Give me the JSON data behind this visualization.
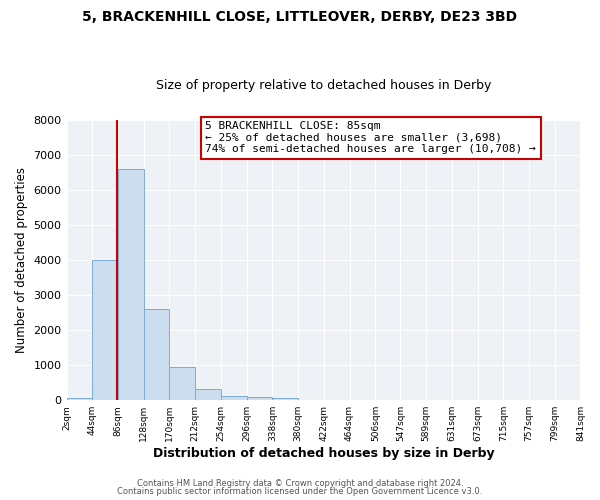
{
  "title_line1": "5, BRACKENHILL CLOSE, LITTLEOVER, DERBY, DE23 3BD",
  "title_line2": "Size of property relative to detached houses in Derby",
  "xlabel": "Distribution of detached houses by size in Derby",
  "ylabel": "Number of detached properties",
  "bar_edges": [
    2,
    44,
    86,
    128,
    170,
    212,
    254,
    296,
    338,
    380,
    422,
    464,
    506,
    547,
    589,
    631,
    673,
    715,
    757,
    799,
    841
  ],
  "bar_heights": [
    50,
    4000,
    6600,
    2600,
    950,
    320,
    130,
    90,
    50,
    0,
    0,
    0,
    0,
    0,
    0,
    0,
    0,
    0,
    0,
    0
  ],
  "tick_labels": [
    "2sqm",
    "44sqm",
    "86sqm",
    "128sqm",
    "170sqm",
    "212sqm",
    "254sqm",
    "296sqm",
    "338sqm",
    "380sqm",
    "422sqm",
    "464sqm",
    "506sqm",
    "547sqm",
    "589sqm",
    "631sqm",
    "673sqm",
    "715sqm",
    "757sqm",
    "799sqm",
    "841sqm"
  ],
  "ylim": [
    0,
    8000
  ],
  "yticks": [
    0,
    1000,
    2000,
    3000,
    4000,
    5000,
    6000,
    7000,
    8000
  ],
  "property_size": 85,
  "property_label": "5 BRACKENHILL CLOSE: 85sqm",
  "smaller_pct": 25,
  "smaller_count": "3,698",
  "larger_pct": 74,
  "larger_count": "10,708",
  "bar_color": "#ccddf0",
  "bar_edge_color": "#7aaed6",
  "vline_color": "#cc0000",
  "box_edge_color": "#cc0000",
  "plot_bg_color": "#eef2f7",
  "grid_color": "#ffffff",
  "footer_line1": "Contains HM Land Registry data © Crown copyright and database right 2024.",
  "footer_line2": "Contains public sector information licensed under the Open Government Licence v3.0."
}
